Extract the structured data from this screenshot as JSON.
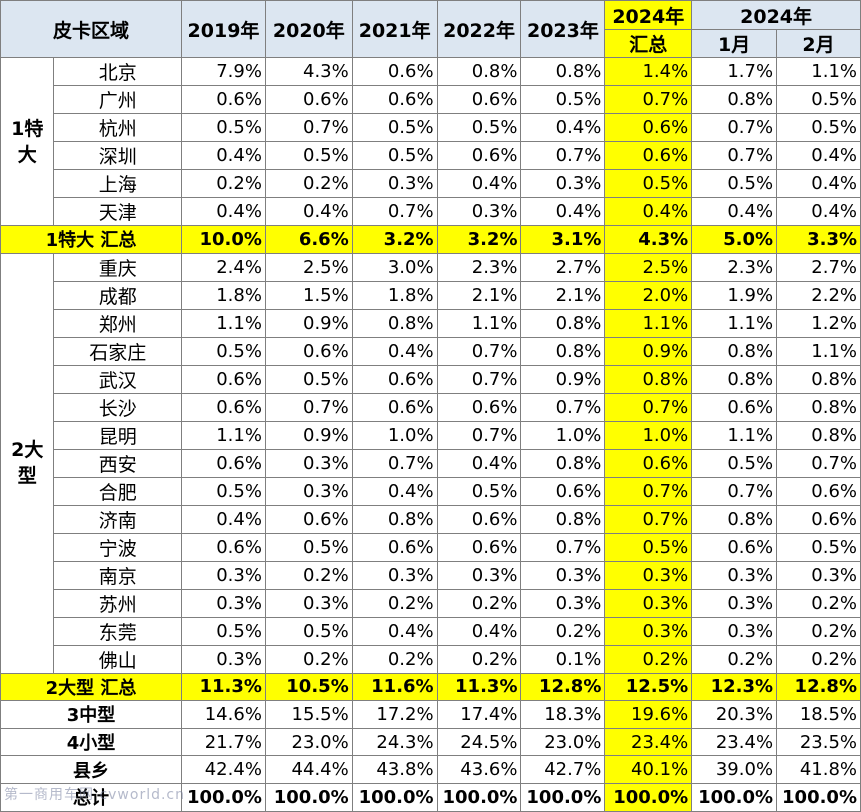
{
  "header": {
    "region": "皮卡区域",
    "years": [
      "2019年",
      "2020年",
      "2021年",
      "2022年",
      "2023年"
    ],
    "ytd_top": "2024年",
    "ytd_bottom": "汇总",
    "month_group": "2024年",
    "months": [
      "1月",
      "2月"
    ]
  },
  "groups": {
    "g1": "1特大",
    "g2": "2大型"
  },
  "rows": [
    {
      "city": "北京",
      "v": [
        "7.9%",
        "4.3%",
        "0.6%",
        "0.8%",
        "0.8%",
        "1.4%",
        "1.7%",
        "1.1%"
      ]
    },
    {
      "city": "广州",
      "v": [
        "0.6%",
        "0.6%",
        "0.6%",
        "0.6%",
        "0.5%",
        "0.7%",
        "0.8%",
        "0.5%"
      ]
    },
    {
      "city": "杭州",
      "v": [
        "0.5%",
        "0.7%",
        "0.5%",
        "0.5%",
        "0.4%",
        "0.6%",
        "0.7%",
        "0.5%"
      ]
    },
    {
      "city": "深圳",
      "v": [
        "0.4%",
        "0.5%",
        "0.5%",
        "0.6%",
        "0.7%",
        "0.6%",
        "0.7%",
        "0.4%"
      ]
    },
    {
      "city": "上海",
      "v": [
        "0.2%",
        "0.2%",
        "0.3%",
        "0.4%",
        "0.3%",
        "0.5%",
        "0.5%",
        "0.4%"
      ]
    },
    {
      "city": "天津",
      "v": [
        "0.4%",
        "0.4%",
        "0.7%",
        "0.3%",
        "0.4%",
        "0.4%",
        "0.4%",
        "0.4%"
      ]
    },
    {
      "label": "1特大 汇总",
      "v": [
        "10.0%",
        "6.6%",
        "3.2%",
        "3.2%",
        "3.1%",
        "4.3%",
        "5.0%",
        "3.3%"
      ]
    },
    {
      "city": "重庆",
      "v": [
        "2.4%",
        "2.5%",
        "3.0%",
        "2.3%",
        "2.7%",
        "2.5%",
        "2.3%",
        "2.7%"
      ]
    },
    {
      "city": "成都",
      "v": [
        "1.8%",
        "1.5%",
        "1.8%",
        "2.1%",
        "2.1%",
        "2.0%",
        "1.9%",
        "2.2%"
      ]
    },
    {
      "city": "郑州",
      "v": [
        "1.1%",
        "0.9%",
        "0.8%",
        "1.1%",
        "0.8%",
        "1.1%",
        "1.1%",
        "1.2%"
      ]
    },
    {
      "city": "石家庄",
      "v": [
        "0.5%",
        "0.6%",
        "0.4%",
        "0.7%",
        "0.8%",
        "0.9%",
        "0.8%",
        "1.1%"
      ]
    },
    {
      "city": "武汉",
      "v": [
        "0.6%",
        "0.5%",
        "0.6%",
        "0.7%",
        "0.9%",
        "0.8%",
        "0.8%",
        "0.8%"
      ]
    },
    {
      "city": "长沙",
      "v": [
        "0.6%",
        "0.7%",
        "0.6%",
        "0.6%",
        "0.7%",
        "0.7%",
        "0.6%",
        "0.8%"
      ]
    },
    {
      "city": "昆明",
      "v": [
        "1.1%",
        "0.9%",
        "1.0%",
        "0.7%",
        "1.0%",
        "1.0%",
        "1.1%",
        "0.8%"
      ]
    },
    {
      "city": "西安",
      "v": [
        "0.6%",
        "0.3%",
        "0.7%",
        "0.4%",
        "0.8%",
        "0.6%",
        "0.5%",
        "0.7%"
      ]
    },
    {
      "city": "合肥",
      "v": [
        "0.5%",
        "0.3%",
        "0.4%",
        "0.5%",
        "0.6%",
        "0.7%",
        "0.7%",
        "0.6%"
      ]
    },
    {
      "city": "济南",
      "v": [
        "0.4%",
        "0.6%",
        "0.8%",
        "0.6%",
        "0.8%",
        "0.7%",
        "0.8%",
        "0.6%"
      ]
    },
    {
      "city": "宁波",
      "v": [
        "0.6%",
        "0.5%",
        "0.6%",
        "0.6%",
        "0.7%",
        "0.5%",
        "0.6%",
        "0.5%"
      ]
    },
    {
      "city": "南京",
      "v": [
        "0.3%",
        "0.2%",
        "0.3%",
        "0.3%",
        "0.3%",
        "0.3%",
        "0.3%",
        "0.3%"
      ]
    },
    {
      "city": "苏州",
      "v": [
        "0.3%",
        "0.3%",
        "0.2%",
        "0.2%",
        "0.3%",
        "0.3%",
        "0.3%",
        "0.2%"
      ]
    },
    {
      "city": "东莞",
      "v": [
        "0.5%",
        "0.5%",
        "0.4%",
        "0.4%",
        "0.2%",
        "0.3%",
        "0.3%",
        "0.2%"
      ]
    },
    {
      "city": "佛山",
      "v": [
        "0.3%",
        "0.2%",
        "0.2%",
        "0.2%",
        "0.1%",
        "0.2%",
        "0.2%",
        "0.2%"
      ]
    },
    {
      "label": "2大型 汇总",
      "v": [
        "11.3%",
        "10.5%",
        "11.6%",
        "11.3%",
        "12.8%",
        "12.5%",
        "12.3%",
        "12.8%"
      ]
    },
    {
      "label": "3中型",
      "v": [
        "14.6%",
        "15.5%",
        "17.2%",
        "17.4%",
        "18.3%",
        "19.6%",
        "20.3%",
        "18.5%"
      ]
    },
    {
      "label": "4小型",
      "v": [
        "21.7%",
        "23.0%",
        "24.3%",
        "24.5%",
        "23.0%",
        "23.4%",
        "23.4%",
        "23.5%"
      ]
    },
    {
      "label": "县乡",
      "v": [
        "42.4%",
        "44.4%",
        "43.8%",
        "43.6%",
        "42.7%",
        "40.1%",
        "39.0%",
        "41.8%"
      ]
    },
    {
      "label": "总计",
      "v": [
        "100.0%",
        "100.0%",
        "100.0%",
        "100.0%",
        "100.0%",
        "100.0%",
        "100.0%",
        "100.0%"
      ]
    }
  ],
  "watermark": "第一商用车网 cvworld.cn",
  "colors": {
    "header_bg": "#dce6f1",
    "highlight": "#ffff00",
    "border": "#7f7f7f"
  }
}
